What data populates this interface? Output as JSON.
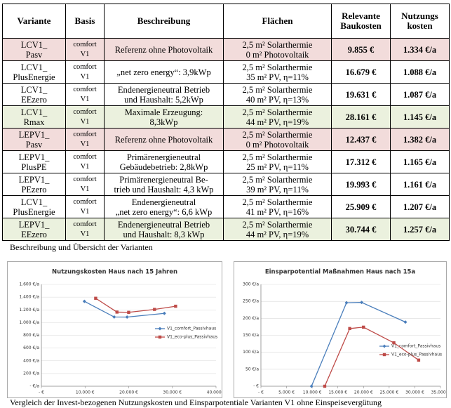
{
  "table": {
    "header": [
      "Variante",
      "Basis",
      "Beschreibung",
      "Flächen",
      "Relevante\nBaukosten",
      "Nutzungs\nkosten"
    ],
    "rows": [
      [
        "LCV1_\nPasv",
        "comfort\nV1",
        "Referenz ohne Photovoltaik",
        "2,5 m² Solarthermie\n0 m² Photovoltaik",
        "9.855 €",
        "1.334 €/a"
      ],
      [
        "LCV1_\nPlusEnergie",
        "comfort\nV1",
        "„net zero energy“: 3,9kWp",
        "2,5 m² Solarthermie\n35 m² PV, η=11%",
        "16.679 €",
        "1.088 €/a"
      ],
      [
        "LCV1_\nEEzero",
        "comfort\nV1",
        "Endenergieneutral Betrieb\nund Haushalt: 5,2kWp",
        "2,5 m² Solarthermie\n40 m² PV, η=13%",
        "19.631 €",
        "1.087 €/a"
      ],
      [
        "LCV1_\nRmax",
        "comfort\nV1",
        "Maximale Erzeugung:\n8,3kWp",
        "2,5 m² Solarthermie\n44 m² PV, η=19%",
        "28.161 €",
        "1.145 €/a"
      ],
      [
        "LEPV1_\nPasv",
        "comfort\nV1",
        "Referenz ohne Photovoltaik",
        "2,5 m² Solarthermie\n0 m² Photovoltaik",
        "12.437 €",
        "1.382 €/a"
      ],
      [
        "LEPV1_\nPlusPE",
        "comfort\nV1",
        "Primärenergieneutral\nGebäudebetrieb: 2,8kWp",
        "2,5 m² Solarthermie\n25 m² PV, η=11%",
        "17.312 €",
        "1.165 €/a"
      ],
      [
        "LEPV1_\nPEzero",
        "comfort\nV1",
        "Primärenergieneutral Be-\ntrieb und Haushalt: 4,3 kWp",
        "2,5 m² Solarthermie\n39 m² PV, η=11%",
        "19.993 €",
        "1.161 €/a"
      ],
      [
        "LCV1_\nPlusEnergie",
        "comfort\nV1",
        "Endenergieneutral\n„net zero energy“: 6,6 kWp",
        "2,5 m² Solarthermie\n41 m² PV, η=16%",
        "25.909 €",
        "1.207 €/a"
      ],
      [
        "LEPV1_\nEEzero",
        "comfort\nV1",
        "Endenergieneutral Betrieb\nund Haushalt: 8,3 kWp",
        "2,5 m² Solarthermie\n44 m² PV, η=19%",
        "30.744 €",
        "1.257 €/a"
      ]
    ],
    "row_colors": [
      "#f2dcdb",
      "#ffffff",
      "#ffffff",
      "#ebf1de",
      "#f2dcdb",
      "#ffffff",
      "#ffffff",
      "#ffffff",
      "#ebf1de"
    ],
    "caption": "Beschreibung und Übersicht der Varianten"
  },
  "figure": {
    "charts": [
      {
        "type": "line",
        "title": "Nutzungskosten Haus nach 15 Jahren",
        "xlim": [
          0,
          40000
        ],
        "xticks": [
          {
            "value": 0,
            "label": "- €"
          },
          {
            "value": 10000,
            "label": "10.000 €"
          },
          {
            "value": 20000,
            "label": "20.000 €"
          },
          {
            "value": 30000,
            "label": "30.000 €"
          },
          {
            "value": 40000,
            "label": "40.000 €"
          }
        ],
        "ylim": [
          0,
          1600
        ],
        "yticks": [
          {
            "value": 0,
            "label": "- €/a"
          },
          {
            "value": 200,
            "label": "200 €/a"
          },
          {
            "value": 400,
            "label": "400 €/a"
          },
          {
            "value": 600,
            "label": "600 €/a"
          },
          {
            "value": 800,
            "label": "800 €/a"
          },
          {
            "value": 1000,
            "label": "1.000 €/a"
          },
          {
            "value": 1200,
            "label": "1.200 €/a"
          },
          {
            "value": 1400,
            "label": "1.400 €/a"
          },
          {
            "value": 1600,
            "label": "1.600 €/a"
          }
        ],
        "grid": true,
        "legend": "right",
        "series": [
          {
            "name": "V1_comfort_Passivhaus",
            "color": "#4a7ebb",
            "marker": "diamond",
            "x": [
              9855,
              16679,
              19631,
              28161
            ],
            "values": [
              1334,
              1088,
              1087,
              1145
            ]
          },
          {
            "name": "V1_eco-plus_Passivhaus",
            "color": "#be4b48",
            "marker": "square",
            "x": [
              12437,
              17312,
              19993,
              25909,
              30744
            ],
            "values": [
              1382,
              1165,
              1161,
              1207,
              1257
            ]
          }
        ]
      },
      {
        "type": "line",
        "title": "Einsparpotential Maßnahmen Haus nach 15a",
        "xlim": [
          0,
          35000
        ],
        "xticks": [
          {
            "value": 0,
            "label": "- €"
          },
          {
            "value": 5000,
            "label": "5.000 €"
          },
          {
            "value": 10000,
            "label": "10.000 €"
          },
          {
            "value": 15000,
            "label": "15.000 €"
          },
          {
            "value": 20000,
            "label": "20.000 €"
          },
          {
            "value": 25000,
            "label": "25.000 €"
          },
          {
            "value": 30000,
            "label": "30.000 €"
          },
          {
            "value": 35000,
            "label": "35.000 €"
          }
        ],
        "ylim": [
          0,
          300
        ],
        "yticks": [
          {
            "value": 0,
            "label": "- €"
          },
          {
            "value": 50,
            "label": "50 €/a"
          },
          {
            "value": 100,
            "label": "100 €/a"
          },
          {
            "value": 150,
            "label": "150 €/a"
          },
          {
            "value": 200,
            "label": "200 €/a"
          },
          {
            "value": 250,
            "label": "250 €/a"
          },
          {
            "value": 300,
            "label": "300 €/a"
          }
        ],
        "grid": true,
        "legend": "right",
        "series": [
          {
            "name": "V1_comfort_Passivhaus",
            "color": "#4a7ebb",
            "marker": "diamond",
            "x": [
              9855,
              16679,
              19631,
              28161
            ],
            "values": [
              0,
              246,
              247,
              189
            ]
          },
          {
            "name": "V1_eco-plus_Passivhaus",
            "color": "#be4b48",
            "marker": "square",
            "x": [
              12437,
              17312,
              19993,
              25909,
              30744
            ],
            "values": [
              0,
              170,
              174,
              128,
              77
            ]
          }
        ]
      }
    ],
    "caption": "Vergleich der Invest-bezogenen Nutzungskosten und Einsparpotentiale Varianten V1 ohne Einspeisevergütung"
  }
}
